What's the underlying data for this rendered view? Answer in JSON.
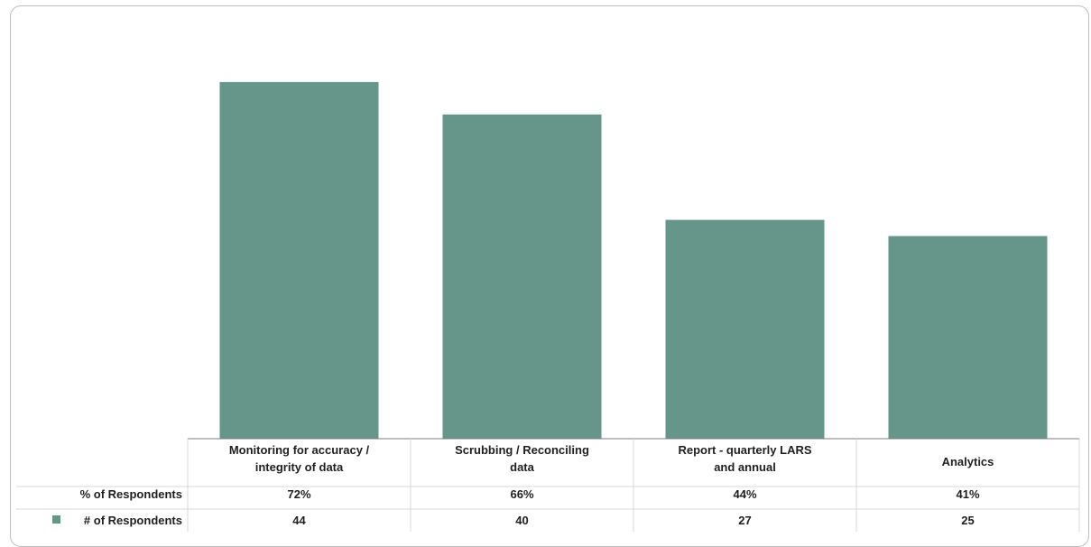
{
  "chart_data": {
    "type": "bar",
    "categories": [
      [
        "Monitoring for accuracy /",
        "integrity of data"
      ],
      [
        "Scrubbing / Reconciling",
        "data"
      ],
      [
        "Report - quarterly LARS",
        "and annual"
      ],
      [
        "Analytics"
      ]
    ],
    "series": [
      {
        "name": "# of Respondents",
        "values": [
          44,
          40,
          27,
          25
        ],
        "color": "#66968a"
      }
    ],
    "table_rows": [
      {
        "label": "% of Respondents",
        "values": [
          "72%",
          "66%",
          "44%",
          "41%"
        ]
      },
      {
        "label": "# of Respondents",
        "values": [
          "44",
          "40",
          "27",
          "25"
        ],
        "legend_key": true
      }
    ],
    "ylim": [
      0,
      48
    ],
    "grid": false,
    "legend": "data-table",
    "colors": {
      "bar": "#66968a",
      "axis": "#7f7f7f",
      "text": "#1f1f1f"
    }
  }
}
